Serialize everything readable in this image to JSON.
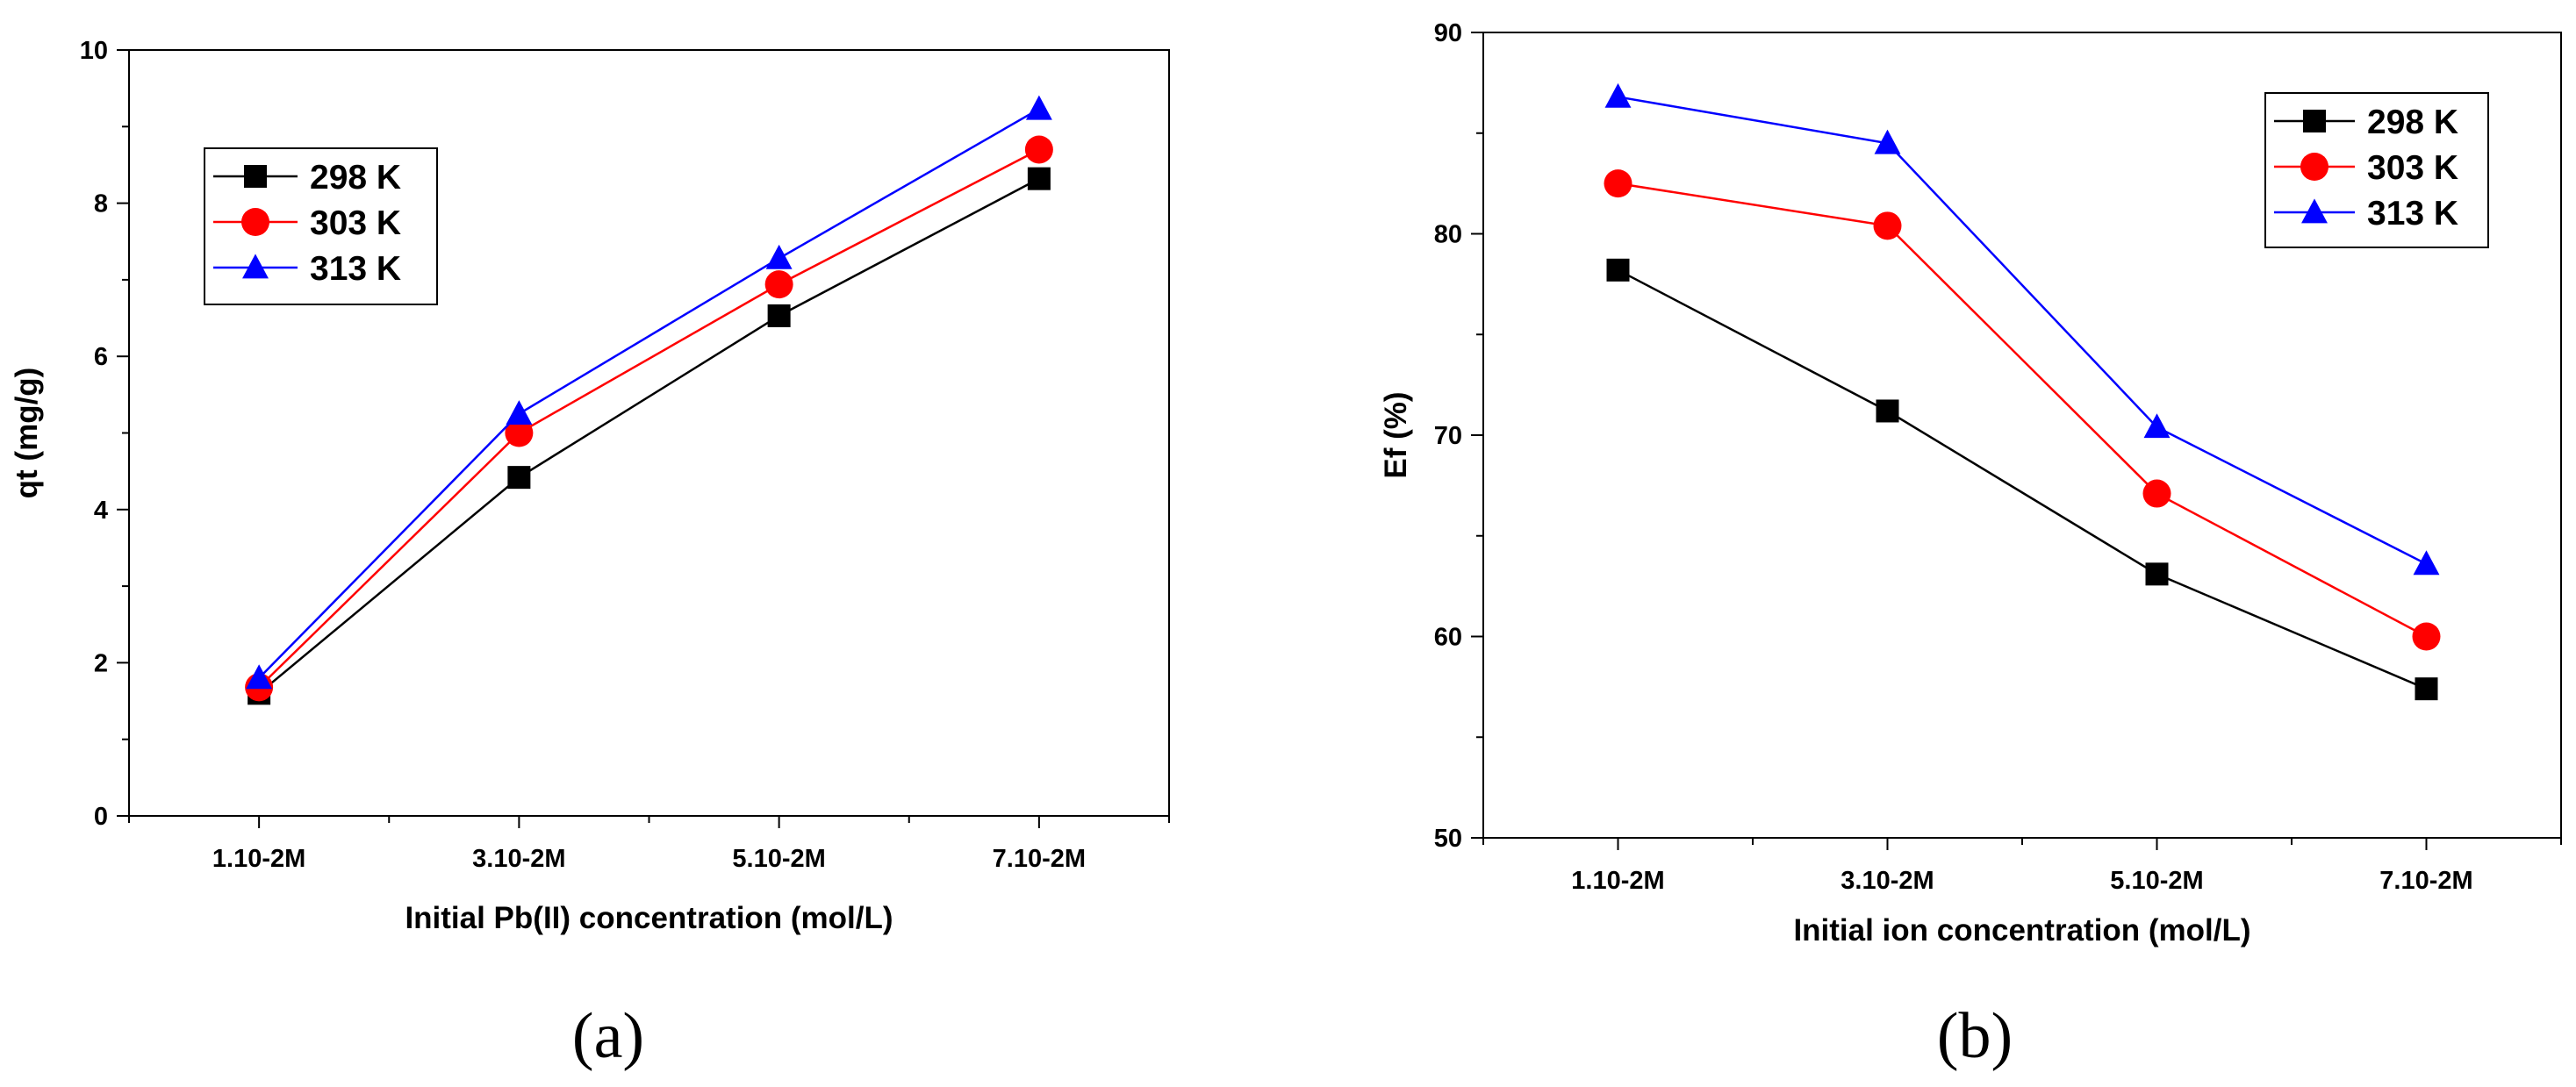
{
  "chart_data": [
    {
      "id": "a",
      "type": "line",
      "panel_label": "(a)",
      "xlabel": "Initial Pb(II) concentration (mol/L)",
      "ylabel": "qt (mg/g)",
      "categories": [
        "1.10-2M",
        "3.10-2M",
        "5.10-2M",
        "7.10-2M"
      ],
      "ylim": [
        0,
        10
      ],
      "yticks": [
        0,
        2,
        4,
        6,
        8,
        10
      ],
      "legend_position": "top-left",
      "series": [
        {
          "name": "298 K",
          "color": "#000000",
          "marker": "square",
          "values": [
            1.6,
            4.42,
            6.53,
            8.32
          ]
        },
        {
          "name": "303 K",
          "color": "#ff0000",
          "marker": "circle",
          "values": [
            1.68,
            5.0,
            6.94,
            8.7
          ]
        },
        {
          "name": "313 K",
          "color": "#0000ff",
          "marker": "triangle",
          "values": [
            1.8,
            5.25,
            7.28,
            9.23
          ]
        }
      ]
    },
    {
      "id": "b",
      "type": "line",
      "panel_label": "(b)",
      "xlabel": "Initial ion concentration (mol/L)",
      "ylabel": "Ef (%)",
      "categories": [
        "1.10-2M",
        "3.10-2M",
        "5.10-2M",
        "7.10-2M"
      ],
      "ylim": [
        50,
        90
      ],
      "yticks": [
        50,
        60,
        70,
        80,
        90
      ],
      "legend_position": "top-right",
      "series": [
        {
          "name": "298 K",
          "color": "#000000",
          "marker": "square",
          "values": [
            78.2,
            71.2,
            63.1,
            57.4
          ]
        },
        {
          "name": "303 K",
          "color": "#ff0000",
          "marker": "circle",
          "values": [
            82.5,
            80.4,
            67.1,
            60.0
          ]
        },
        {
          "name": "313 K",
          "color": "#0000ff",
          "marker": "triangle",
          "values": [
            86.8,
            84.5,
            70.4,
            63.6
          ]
        }
      ]
    }
  ]
}
